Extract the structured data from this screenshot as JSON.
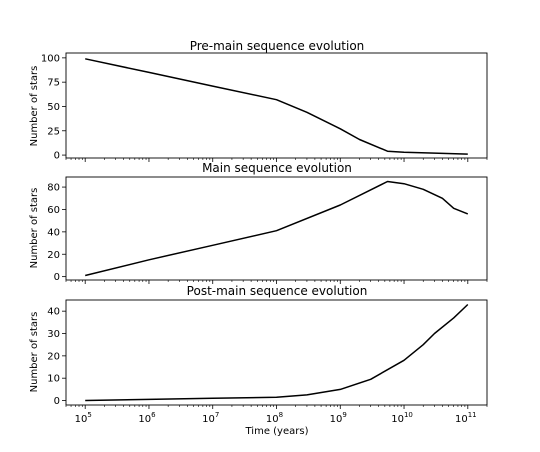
{
  "figure": {
    "xlabel": "Time (years)",
    "line_color": "#000000",
    "x_tick_labels": [
      {
        "base": "10",
        "exp": "5"
      },
      {
        "base": "10",
        "exp": "6"
      },
      {
        "base": "10",
        "exp": "7"
      },
      {
        "base": "10",
        "exp": "8"
      },
      {
        "base": "10",
        "exp": "9"
      },
      {
        "base": "10",
        "exp": "10"
      },
      {
        "base": "10",
        "exp": "11"
      }
    ]
  },
  "chart_data": [
    {
      "type": "line",
      "title": "Pre-main sequence evolution",
      "xlabel": "",
      "ylabel": "Number of stars",
      "xscale": "log",
      "xlim": [
        50000,
        200000000000
      ],
      "ylim": [
        -3,
        105
      ],
      "yticks": [
        0,
        25,
        50,
        75,
        100
      ],
      "grid": false,
      "series": [
        {
          "x": [
            100000,
            1000000,
            10000000,
            100000000,
            300000000,
            1000000000,
            2000000000,
            5500000000,
            10000000000,
            30000000000,
            100000000000
          ],
          "y": [
            99,
            85,
            71,
            57,
            44,
            27,
            16,
            4,
            3,
            2,
            1
          ]
        }
      ]
    },
    {
      "type": "line",
      "title": "Main sequence evolution",
      "xlabel": "",
      "ylabel": "Number of stars",
      "xscale": "log",
      "xlim": [
        50000,
        200000000000
      ],
      "ylim": [
        -3,
        89
      ],
      "yticks": [
        0,
        20,
        40,
        60,
        80
      ],
      "grid": false,
      "series": [
        {
          "x": [
            100000,
            1000000,
            10000000,
            100000000,
            1000000000,
            5500000000,
            10000000000,
            20000000000,
            40000000000,
            60000000000,
            100000000000
          ],
          "y": [
            1,
            15,
            28,
            41,
            64,
            85,
            83,
            78,
            70,
            61,
            56
          ]
        }
      ]
    },
    {
      "type": "line",
      "title": "Post-main sequence evolution",
      "xlabel": "Time (years)",
      "ylabel": "Number of stars",
      "xscale": "log",
      "xlim": [
        50000,
        200000000000
      ],
      "ylim": [
        -2,
        45
      ],
      "yticks": [
        0,
        10,
        20,
        30,
        40
      ],
      "grid": false,
      "series": [
        {
          "x": [
            100000,
            1000000,
            10000000,
            100000000,
            300000000,
            1000000000,
            3000000000,
            10000000000,
            20000000000,
            30000000000,
            60000000000,
            100000000000
          ],
          "y": [
            0,
            0.5,
            1,
            1.5,
            2.5,
            5,
            9.5,
            18,
            25,
            30,
            37,
            43
          ]
        }
      ]
    }
  ]
}
